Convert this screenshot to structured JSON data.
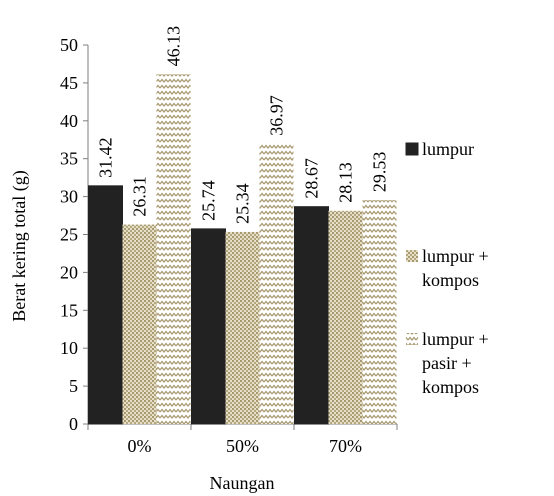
{
  "chart_data": {
    "type": "bar",
    "title": "",
    "xlabel": "Naungan",
    "ylabel": "Berat kering total (g)",
    "ylim": [
      0,
      50
    ],
    "yticks": [
      0,
      5,
      10,
      15,
      20,
      25,
      30,
      35,
      40,
      45,
      50
    ],
    "grid": false,
    "legend_position": "right",
    "categories": [
      "0%",
      "50%",
      "70%"
    ],
    "series": [
      {
        "name": "lumpur",
        "legend_lines": [
          "lumpur"
        ],
        "pattern": "solid",
        "color": "#222222",
        "values": [
          31.42,
          25.74,
          28.67
        ],
        "labels": [
          "31.42",
          "25.74",
          "28.67"
        ]
      },
      {
        "name": "lumpur + kompos",
        "legend_lines": [
          "lumpur +",
          "kompos"
        ],
        "pattern": "dots",
        "color": "#c8bc96",
        "values": [
          26.31,
          25.34,
          28.13
        ],
        "labels": [
          "26.31",
          "25.34",
          "28.13"
        ]
      },
      {
        "name": "lumpur + pasir + kompos",
        "legend_lines": [
          "lumpur +",
          "pasir +",
          "kompos"
        ],
        "pattern": "zigzag",
        "color": "#b8ac88",
        "values": [
          46.13,
          36.97,
          29.53
        ],
        "labels": [
          "46.13",
          "36.97",
          "29.53"
        ]
      }
    ]
  }
}
